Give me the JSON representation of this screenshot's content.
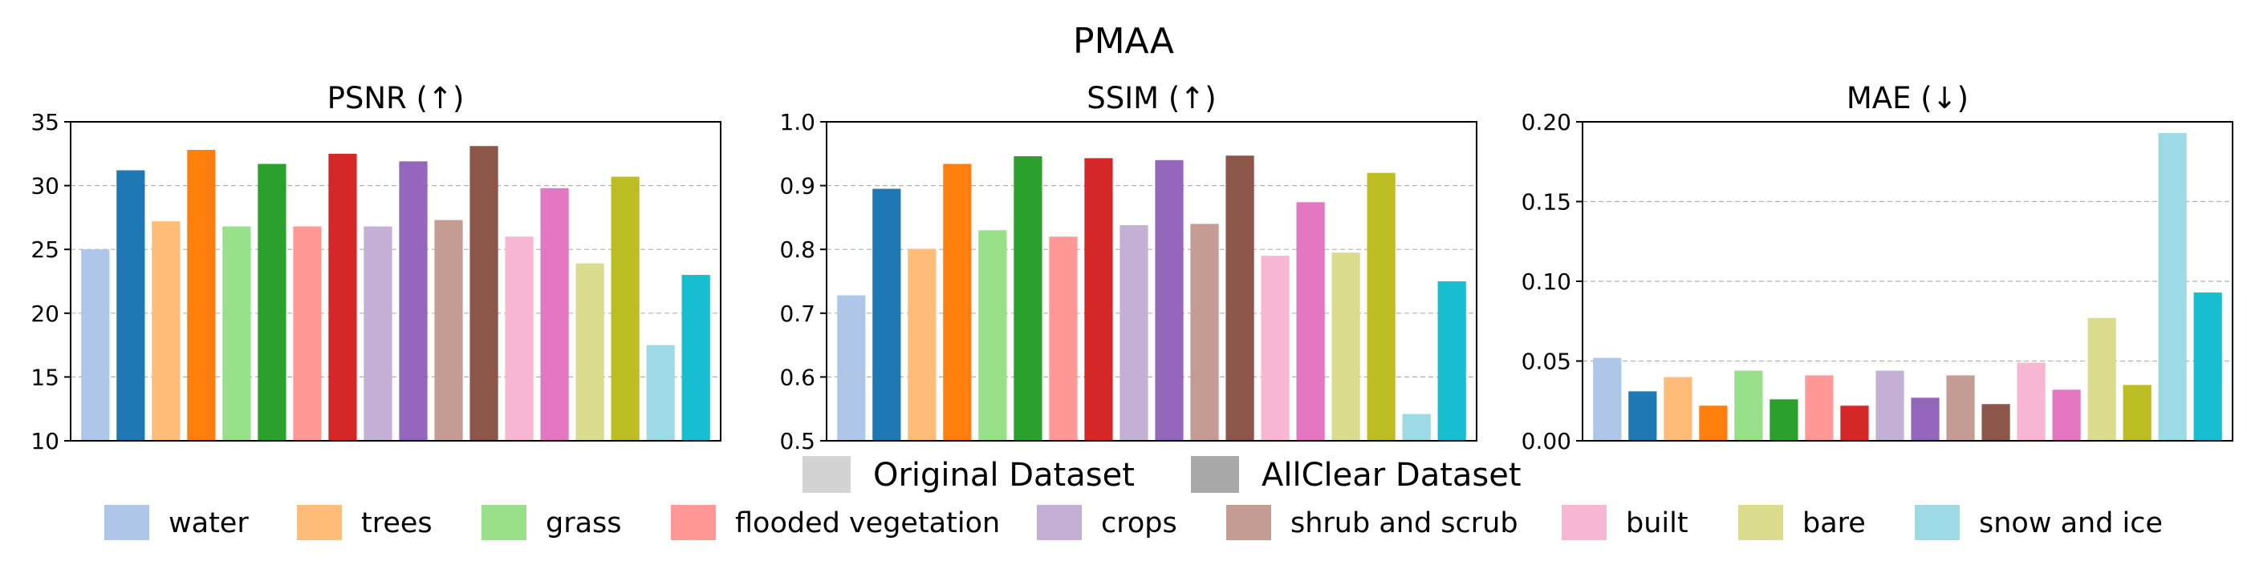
{
  "suptitle": "PMAA",
  "legend_dataset": [
    {
      "label": "Original Dataset",
      "color": "#d3d3d3"
    },
    {
      "label": "AllClear Dataset",
      "color": "#a9a9a9"
    }
  ],
  "legend_classes": [
    {
      "label": "water",
      "light": "#aec7e8",
      "dark": "#1f77b4"
    },
    {
      "label": "trees",
      "light": "#ffbb78",
      "dark": "#ff7f0e"
    },
    {
      "label": "grass",
      "light": "#98df8a",
      "dark": "#2ca02c"
    },
    {
      "label": "flooded vegetation",
      "light": "#ff9896",
      "dark": "#d62728"
    },
    {
      "label": "crops",
      "light": "#c5b0d5",
      "dark": "#9467bd"
    },
    {
      "label": "shrub and scrub",
      "light": "#c49c94",
      "dark": "#8c564b"
    },
    {
      "label": "built",
      "light": "#f7b6d2",
      "dark": "#e377c2"
    },
    {
      "label": "bare",
      "light": "#dbdb8d",
      "dark": "#bcbd22"
    },
    {
      "label": "snow and ice",
      "light": "#9edae5",
      "dark": "#17becf"
    }
  ],
  "chart_data": [
    {
      "type": "bar",
      "title": "PSNR (↑)",
      "ylim": [
        10,
        35
      ],
      "yticks": [
        10,
        15,
        20,
        25,
        30,
        35
      ],
      "ytick_labels": [
        "10",
        "15",
        "20",
        "25",
        "30",
        "35"
      ],
      "grid": true,
      "categories": [
        "water",
        "trees",
        "grass",
        "flooded vegetation",
        "crops",
        "shrub and scrub",
        "built",
        "bare",
        "snow and ice"
      ],
      "series": [
        {
          "name": "Original Dataset",
          "values": [
            25.0,
            27.2,
            26.8,
            26.8,
            26.8,
            27.3,
            26.0,
            23.9,
            17.5
          ]
        },
        {
          "name": "AllClear Dataset",
          "values": [
            31.2,
            32.8,
            31.7,
            32.5,
            31.9,
            33.1,
            29.8,
            30.7,
            23.0
          ]
        }
      ]
    },
    {
      "type": "bar",
      "title": "SSIM (↑)",
      "ylim": [
        0.5,
        1.0
      ],
      "yticks": [
        0.5,
        0.6,
        0.7,
        0.8,
        0.9,
        1.0
      ],
      "ytick_labels": [
        "0.5",
        "0.6",
        "0.7",
        "0.8",
        "0.9",
        "1.0"
      ],
      "grid": true,
      "categories": [
        "water",
        "trees",
        "grass",
        "flooded vegetation",
        "crops",
        "shrub and scrub",
        "built",
        "bare",
        "snow and ice"
      ],
      "series": [
        {
          "name": "Original Dataset",
          "values": [
            0.728,
            0.801,
            0.83,
            0.82,
            0.838,
            0.84,
            0.79,
            0.795,
            0.542
          ]
        },
        {
          "name": "AllClear Dataset",
          "values": [
            0.895,
            0.934,
            0.946,
            0.943,
            0.94,
            0.947,
            0.874,
            0.92,
            0.75
          ]
        }
      ]
    },
    {
      "type": "bar",
      "title": "MAE (↓)",
      "ylim": [
        0.0,
        0.2
      ],
      "yticks": [
        0.0,
        0.05,
        0.1,
        0.15,
        0.2
      ],
      "ytick_labels": [
        "0.00",
        "0.05",
        "0.10",
        "0.15",
        "0.20"
      ],
      "grid": true,
      "categories": [
        "water",
        "trees",
        "grass",
        "flooded vegetation",
        "crops",
        "shrub and scrub",
        "built",
        "bare",
        "snow and ice"
      ],
      "series": [
        {
          "name": "Original Dataset",
          "values": [
            0.052,
            0.04,
            0.044,
            0.041,
            0.044,
            0.041,
            0.049,
            0.077,
            0.193
          ]
        },
        {
          "name": "AllClear Dataset",
          "values": [
            0.031,
            0.022,
            0.026,
            0.022,
            0.027,
            0.023,
            0.032,
            0.035,
            0.093
          ]
        }
      ]
    }
  ]
}
